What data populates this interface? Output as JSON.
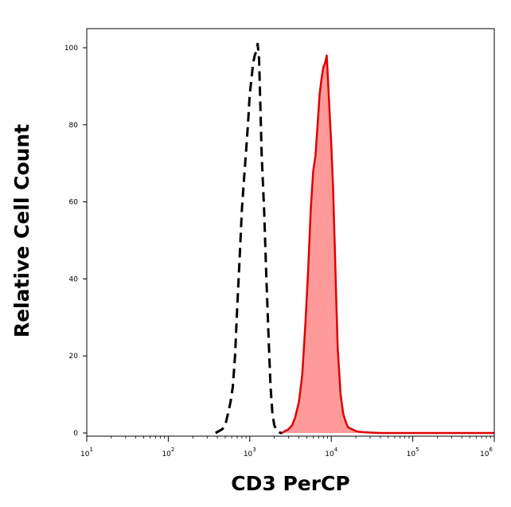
{
  "chart_data": {
    "type": "area",
    "title": "",
    "xlabel": "CD3 PerCP",
    "ylabel": "Relative Cell Count",
    "x_scale": "log",
    "xlim": [
      10,
      1000000
    ],
    "ylim": [
      0,
      105
    ],
    "grid": false,
    "legend": "none",
    "x_ticks": [
      {
        "value": 10,
        "base": "10",
        "exp": "1"
      },
      {
        "value": 100,
        "base": "10",
        "exp": "2"
      },
      {
        "value": 1000,
        "base": "10",
        "exp": "3"
      },
      {
        "value": 10000,
        "base": "10",
        "exp": "4"
      },
      {
        "value": 100000,
        "base": "10",
        "exp": "5"
      },
      {
        "value": 1000000,
        "base": "10",
        "exp": "6"
      }
    ],
    "y_ticks": [
      {
        "value": 0,
        "label": "0"
      },
      {
        "value": 20,
        "label": "20"
      },
      {
        "value": 40,
        "label": "40"
      },
      {
        "value": 60,
        "label": "60"
      },
      {
        "value": 80,
        "label": "80"
      },
      {
        "value": 100,
        "label": "100"
      }
    ],
    "series": [
      {
        "style": "dashed",
        "color": "#000000",
        "fill": "none",
        "x": [
          380,
          420,
          460,
          500,
          540,
          580,
          620,
          660,
          700,
          750,
          800,
          850,
          900,
          950,
          1000,
          1050,
          1100,
          1150,
          1200,
          1250,
          1300,
          1350,
          1400,
          1500,
          1600,
          1700,
          1800,
          1900,
          2000,
          2100,
          2200,
          2300,
          2400,
          2500
        ],
        "y": [
          0,
          0.5,
          1,
          2,
          5,
          8,
          12,
          20,
          32,
          45,
          58,
          66,
          73,
          80,
          88,
          92,
          96,
          98,
          99,
          101,
          97,
          85,
          72,
          58,
          40,
          25,
          12,
          5,
          2,
          1,
          0.5,
          0.2,
          0,
          0
        ]
      },
      {
        "style": "solid",
        "color": "#e00000",
        "fill": "#ff9a9a",
        "x": [
          2500,
          2700,
          3000,
          3300,
          3600,
          4000,
          4400,
          4800,
          5200,
          5600,
          6000,
          6400,
          6800,
          7200,
          7600,
          8000,
          8400,
          8800,
          9200,
          9600,
          10000,
          10500,
          11000,
          11500,
          12000,
          13000,
          14000,
          15000,
          16000,
          18000,
          20000,
          22000,
          25000,
          30000,
          40000,
          100000,
          1000000
        ],
        "y": [
          0,
          0.5,
          1,
          2,
          4,
          8,
          15,
          28,
          42,
          58,
          68,
          72,
          80,
          88,
          92,
          95,
          96,
          98,
          90,
          82,
          75,
          64,
          50,
          35,
          22,
          10,
          5,
          3,
          1.5,
          1,
          0.5,
          0.3,
          0.2,
          0.1,
          0,
          0,
          0
        ]
      }
    ]
  }
}
